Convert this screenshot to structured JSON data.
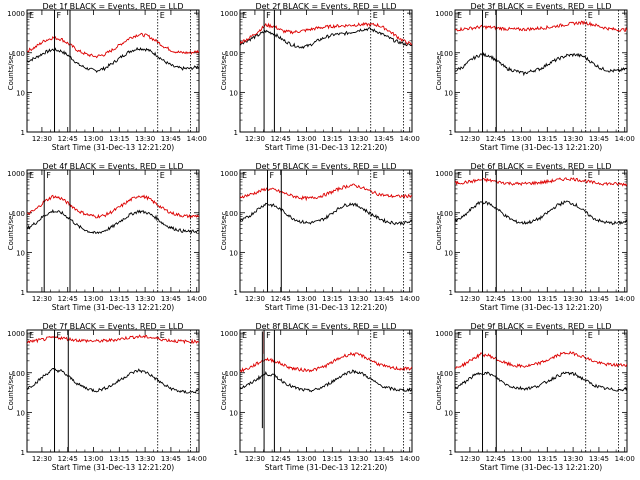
{
  "page": {
    "background": "#ffffff",
    "colors": {
      "events": "#000000",
      "lld": "#dd0000",
      "frame": "#000000"
    }
  },
  "common": {
    "ylabel": "Counts/sec",
    "xlabel": "Start Time (31-Dec-13 12:21:20)",
    "x_ticks": [
      "12:30",
      "12:45",
      "13:00",
      "13:15",
      "13:30",
      "13:45",
      "14:00"
    ],
    "y_ticks": [
      "1",
      "10",
      "100",
      "1000"
    ],
    "y_scale": "log",
    "marker_letters": {
      "E1": "E",
      "F": "F",
      "E2": "E"
    }
  },
  "chart_data": [
    {
      "type": "line",
      "title": "Det 1f BLACK = Events, RED = LLD",
      "x_unit": "minutes after 12:21:20",
      "xlim": [
        0,
        100
      ],
      "ylim": [
        1,
        1200
      ],
      "x_ticks_min": [
        8.67,
        23.67,
        38.67,
        53.67,
        68.67,
        83.67,
        98.67
      ],
      "markers": {
        "E1": 10,
        "F": 16,
        "F_end": 25,
        "E2": 76,
        "E3": 95
      },
      "x": [
        0,
        5,
        10,
        15,
        20,
        25,
        30,
        35,
        40,
        45,
        50,
        55,
        60,
        65,
        70,
        75,
        80,
        85,
        90,
        95,
        100
      ],
      "series": [
        {
          "name": "Events",
          "color": "#000000",
          "values": [
            60,
            75,
            100,
            120,
            110,
            80,
            50,
            40,
            35,
            40,
            55,
            80,
            110,
            130,
            120,
            90,
            60,
            45,
            40,
            40,
            45
          ]
        },
        {
          "name": "LLD",
          "color": "#dd0000",
          "values": [
            110,
            140,
            200,
            240,
            220,
            160,
            110,
            90,
            80,
            90,
            120,
            170,
            240,
            290,
            270,
            200,
            140,
            110,
            100,
            100,
            110
          ]
        }
      ]
    },
    {
      "type": "line",
      "title": "Det 2f BLACK = Events, RED = LLD",
      "x_unit": "minutes after 12:21:20",
      "xlim": [
        0,
        100
      ],
      "ylim": [
        1,
        1200
      ],
      "x_ticks_min": [
        8.67,
        23.67,
        38.67,
        53.67,
        68.67,
        83.67,
        98.67
      ],
      "markers": {
        "E1": 0,
        "F": 14,
        "F_end": 20,
        "E2": 76,
        "E3": 95
      },
      "x": [
        0,
        5,
        10,
        15,
        20,
        25,
        30,
        35,
        40,
        45,
        50,
        55,
        60,
        65,
        70,
        75,
        80,
        85,
        90,
        95,
        100
      ],
      "series": [
        {
          "name": "Events",
          "color": "#000000",
          "values": [
            170,
            210,
            270,
            350,
            300,
            210,
            160,
            140,
            150,
            200,
            250,
            290,
            300,
            330,
            380,
            400,
            340,
            260,
            200,
            170,
            150
          ]
        },
        {
          "name": "LLD",
          "color": "#dd0000",
          "values": [
            180,
            230,
            330,
            500,
            460,
            350,
            330,
            350,
            380,
            420,
            450,
            470,
            480,
            500,
            510,
            520,
            500,
            400,
            280,
            200,
            160
          ]
        }
      ]
    },
    {
      "type": "line",
      "title": "Det 3f BLACK = Events, RED = LLD",
      "x_unit": "minutes after 12:21:20",
      "xlim": [
        0,
        100
      ],
      "ylim": [
        1,
        1200
      ],
      "x_ticks_min": [
        8.67,
        23.67,
        38.67,
        53.67,
        68.67,
        83.67,
        98.67
      ],
      "markers": {
        "E1": 0,
        "F": 16,
        "F_end": 24,
        "E2": 76,
        "E3": 95
      },
      "x": [
        0,
        5,
        10,
        15,
        20,
        25,
        30,
        35,
        40,
        45,
        50,
        55,
        60,
        65,
        70,
        75,
        80,
        85,
        90,
        95,
        100
      ],
      "series": [
        {
          "name": "Events",
          "color": "#000000",
          "values": [
            35,
            45,
            70,
            90,
            85,
            60,
            40,
            35,
            30,
            35,
            40,
            55,
            70,
            85,
            90,
            80,
            55,
            40,
            35,
            35,
            40
          ]
        },
        {
          "name": "LLD",
          "color": "#dd0000",
          "values": [
            380,
            400,
            420,
            450,
            440,
            420,
            400,
            390,
            390,
            400,
            420,
            440,
            480,
            520,
            560,
            580,
            520,
            450,
            400,
            380,
            380
          ]
        }
      ]
    },
    {
      "type": "line",
      "title": "Det 4f BLACK = Events, RED = LLD",
      "x_unit": "minutes after 12:21:20",
      "xlim": [
        0,
        100
      ],
      "ylim": [
        1,
        1200
      ],
      "x_ticks_min": [
        8.67,
        23.67,
        38.67,
        53.67,
        68.67,
        83.67,
        98.67
      ],
      "markers": {
        "E1": 0,
        "F": 10,
        "F_end": 25,
        "E2": 76,
        "E3": 95
      },
      "x": [
        0,
        5,
        10,
        15,
        20,
        25,
        30,
        35,
        40,
        45,
        50,
        55,
        60,
        65,
        70,
        75,
        80,
        85,
        90,
        95,
        100
      ],
      "series": [
        {
          "name": "Events",
          "color": "#000000",
          "values": [
            40,
            55,
            85,
            110,
            100,
            70,
            45,
            35,
            30,
            35,
            45,
            65,
            90,
            110,
            100,
            75,
            50,
            40,
            35,
            33,
            35
          ]
        },
        {
          "name": "LLD",
          "color": "#dd0000",
          "values": [
            90,
            120,
            190,
            260,
            230,
            160,
            110,
            90,
            80,
            85,
            110,
            150,
            210,
            270,
            240,
            170,
            120,
            95,
            85,
            80,
            85
          ]
        }
      ]
    },
    {
      "type": "line",
      "title": "Det 5f BLACK = Events, RED = LLD",
      "x_unit": "minutes after 12:21:20",
      "xlim": [
        0,
        100
      ],
      "ylim": [
        1,
        1200
      ],
      "x_ticks_min": [
        8.67,
        23.67,
        38.67,
        53.67,
        68.67,
        83.67,
        98.67
      ],
      "markers": {
        "E1": 0,
        "F": 16,
        "F_end": 24,
        "E2": 76,
        "E3": 95
      },
      "x": [
        0,
        5,
        10,
        15,
        20,
        25,
        30,
        35,
        40,
        45,
        50,
        55,
        60,
        65,
        70,
        75,
        80,
        85,
        90,
        95,
        100
      ],
      "series": [
        {
          "name": "Events",
          "color": "#000000",
          "values": [
            60,
            80,
            120,
            170,
            150,
            110,
            75,
            60,
            55,
            60,
            75,
            110,
            150,
            170,
            140,
            100,
            75,
            60,
            55,
            55,
            60
          ]
        },
        {
          "name": "LLD",
          "color": "#dd0000",
          "values": [
            250,
            280,
            330,
            400,
            380,
            320,
            270,
            240,
            230,
            250,
            290,
            360,
            440,
            500,
            450,
            360,
            300,
            270,
            260,
            260,
            270
          ]
        }
      ]
    },
    {
      "type": "line",
      "title": "Det 6f BLACK = Events, RED = LLD",
      "x_unit": "minutes after 12:21:20",
      "xlim": [
        0,
        100
      ],
      "ylim": [
        1,
        1200
      ],
      "x_ticks_min": [
        8.67,
        23.67,
        38.67,
        53.67,
        68.67,
        83.67,
        98.67
      ],
      "markers": {
        "E1": 0,
        "F": 16,
        "F_end": 24,
        "E2": 76,
        "E3": 95
      },
      "x": [
        0,
        5,
        10,
        15,
        20,
        25,
        30,
        35,
        40,
        45,
        50,
        55,
        60,
        65,
        70,
        75,
        80,
        85,
        90,
        95,
        100
      ],
      "series": [
        {
          "name": "Events",
          "color": "#000000",
          "values": [
            60,
            80,
            130,
            190,
            170,
            120,
            80,
            60,
            55,
            60,
            75,
            110,
            160,
            190,
            160,
            110,
            75,
            60,
            55,
            55,
            60
          ]
        },
        {
          "name": "LLD",
          "color": "#dd0000",
          "values": [
            560,
            580,
            620,
            680,
            660,
            600,
            560,
            540,
            540,
            560,
            580,
            620,
            680,
            720,
            700,
            640,
            580,
            550,
            540,
            530,
            520
          ]
        }
      ]
    },
    {
      "type": "line",
      "title": "Det 7f BLACK = Events, RED = LLD",
      "x_unit": "minutes after 12:21:20",
      "xlim": [
        0,
        100
      ],
      "ylim": [
        1,
        1200
      ],
      "x_ticks_min": [
        8.67,
        23.67,
        38.67,
        53.67,
        68.67,
        83.67,
        98.67
      ],
      "markers": {
        "E1": 0,
        "F": 16,
        "F_end": 24,
        "E2": 76,
        "E3": 95
      },
      "x": [
        0,
        5,
        10,
        15,
        20,
        25,
        30,
        35,
        40,
        45,
        50,
        55,
        60,
        65,
        70,
        75,
        80,
        85,
        90,
        95,
        100
      ],
      "series": [
        {
          "name": "Events",
          "color": "#000000",
          "values": [
            40,
            55,
            85,
            120,
            110,
            75,
            50,
            40,
            35,
            40,
            50,
            70,
            95,
            115,
            100,
            70,
            48,
            38,
            33,
            32,
            35
          ]
        },
        {
          "name": "LLD",
          "color": "#dd0000",
          "values": [
            600,
            640,
            700,
            780,
            760,
            700,
            660,
            640,
            630,
            640,
            670,
            720,
            780,
            820,
            800,
            740,
            680,
            640,
            620,
            610,
            620
          ]
        }
      ]
    },
    {
      "type": "line",
      "title": "Det 8f BLACK = Events, RED = LLD",
      "x_unit": "minutes after 12:21:20",
      "xlim": [
        0,
        100
      ],
      "ylim": [
        1,
        1200
      ],
      "x_ticks_min": [
        8.67,
        23.67,
        38.67,
        53.67,
        68.67,
        83.67,
        98.67
      ],
      "markers": {
        "E1": 0,
        "F": 14,
        "F_end": 20,
        "E2": 76,
        "E3": 95
      },
      "x": [
        0,
        5,
        10,
        15,
        20,
        25,
        30,
        35,
        40,
        45,
        50,
        55,
        60,
        65,
        70,
        75,
        80,
        85,
        90,
        95,
        100
      ],
      "series": [
        {
          "name": "Events",
          "color": "#000000",
          "values": [
            40,
            50,
            70,
            95,
            85,
            60,
            45,
            38,
            35,
            38,
            48,
            65,
            90,
            110,
            100,
            75,
            52,
            42,
            38,
            36,
            38
          ]
        },
        {
          "name": "LLD",
          "color": "#dd0000",
          "values": [
            110,
            130,
            170,
            220,
            200,
            160,
            130,
            120,
            115,
            125,
            150,
            200,
            260,
            300,
            280,
            220,
            170,
            140,
            130,
            125,
            130
          ]
        }
      ],
      "spike": {
        "x": 13,
        "min": 4,
        "max": 1100
      }
    },
    {
      "type": "line",
      "title": "Det 9f BLACK = Events, RED = LLD",
      "x_unit": "minutes after 12:21:20",
      "xlim": [
        0,
        100
      ],
      "ylim": [
        1,
        1200
      ],
      "x_ticks_min": [
        8.67,
        23.67,
        38.67,
        53.67,
        68.67,
        83.67,
        98.67
      ],
      "markers": {
        "E1": 0,
        "F": 16,
        "F_end": 24,
        "E2": 76,
        "E3": 95
      },
      "x": [
        0,
        5,
        10,
        15,
        20,
        25,
        30,
        35,
        40,
        45,
        50,
        55,
        60,
        65,
        70,
        75,
        80,
        85,
        90,
        95,
        100
      ],
      "series": [
        {
          "name": "Events",
          "color": "#000000",
          "values": [
            40,
            55,
            80,
            100,
            95,
            70,
            50,
            42,
            40,
            42,
            50,
            65,
            85,
            100,
            90,
            68,
            50,
            42,
            38,
            37,
            40
          ]
        },
        {
          "name": "LLD",
          "color": "#dd0000",
          "values": [
            130,
            160,
            220,
            290,
            270,
            210,
            170,
            150,
            145,
            155,
            180,
            220,
            280,
            320,
            300,
            250,
            200,
            170,
            160,
            155,
            160
          ]
        }
      ]
    }
  ]
}
